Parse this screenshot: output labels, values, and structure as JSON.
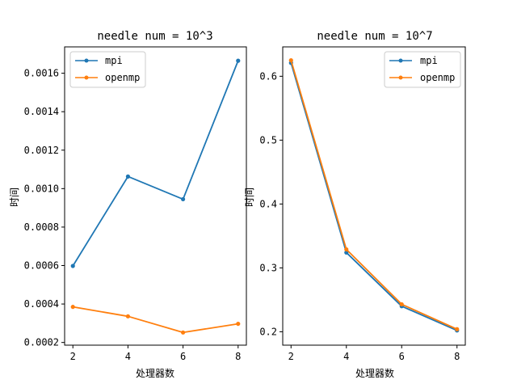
{
  "chart_data": [
    {
      "type": "line",
      "title": "needle num = 10^3",
      "xlabel": "处理器数",
      "ylabel": "时间",
      "x": [
        2,
        4,
        6,
        8
      ],
      "xticks": [
        "2",
        "4",
        "6",
        "8"
      ],
      "xlim": [
        1.7,
        8.3
      ],
      "yticks": [
        "0.0002",
        "0.0004",
        "0.0006",
        "0.0008",
        "0.0010",
        "0.0012",
        "0.0014",
        "0.0016"
      ],
      "ylim": [
        0.000186,
        0.001737
      ],
      "legend": "upper left",
      "series": [
        {
          "name": "mpi",
          "color": "#1f77b4",
          "values": [
            0.000598,
            0.001063,
            0.000945,
            0.001665
          ]
        },
        {
          "name": "openmp",
          "color": "#ff7f0e",
          "values": [
            0.000385,
            0.000336,
            0.000252,
            0.000297
          ]
        }
      ]
    },
    {
      "type": "line",
      "title": "needle num = 10^7",
      "xlabel": "处理器数",
      "ylabel": "时间",
      "x": [
        2,
        4,
        6,
        8
      ],
      "xticks": [
        "2",
        "4",
        "6",
        "8"
      ],
      "xlim": [
        1.7,
        8.3
      ],
      "yticks": [
        "0.2",
        "0.3",
        "0.4",
        "0.5",
        "0.6"
      ],
      "ylim": [
        0.179,
        0.646
      ],
      "legend": "upper right",
      "series": [
        {
          "name": "mpi",
          "color": "#1f77b4",
          "values": [
            0.621,
            0.324,
            0.24,
            0.202
          ]
        },
        {
          "name": "openmp",
          "color": "#ff7f0e",
          "values": [
            0.625,
            0.329,
            0.243,
            0.204
          ]
        }
      ]
    }
  ]
}
